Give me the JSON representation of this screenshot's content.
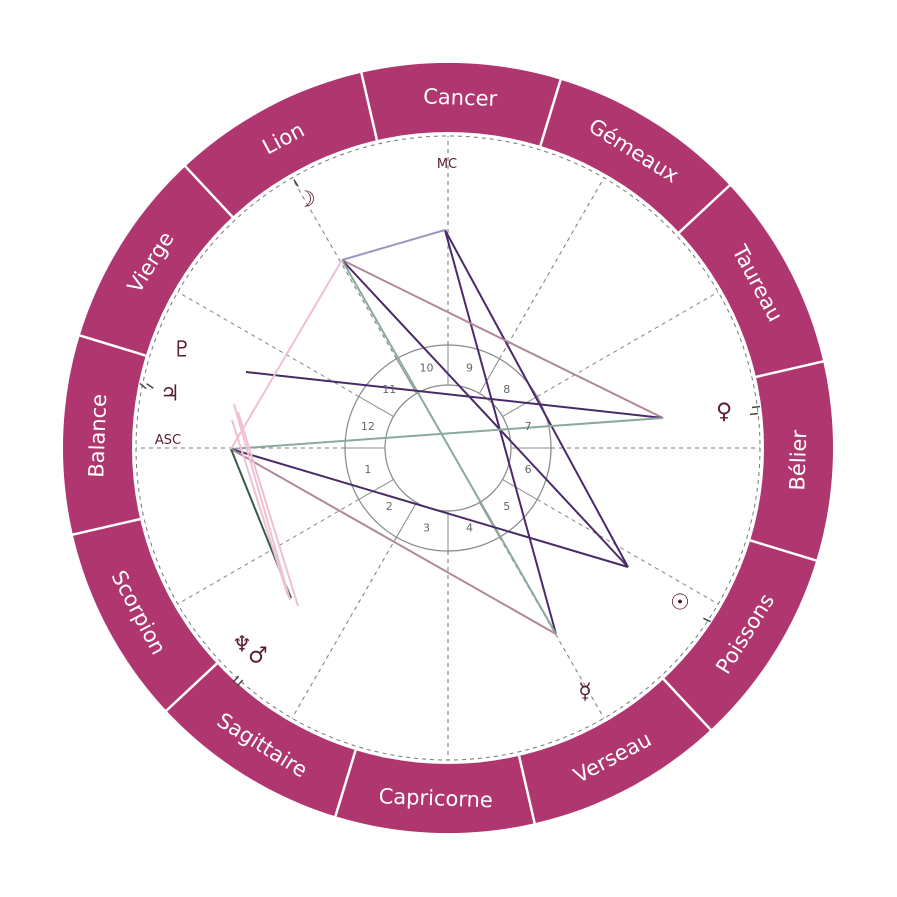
{
  "colors": {
    "ring": "#b0366f",
    "ring_divider": "#ffffff",
    "sign_text": "#ffffff",
    "glyph": "#5a2030",
    "dashed": "#777777",
    "inner_circles": "#888888",
    "aspect_dark_purple": "#4a2a6a",
    "aspect_mauve": "#b08898",
    "aspect_pink": "#eec0d4",
    "aspect_sage": "#8aaa9a",
    "aspect_lavender": "#9a98c0",
    "aspect_dark_green": "#3a5a48"
  },
  "signs": [
    {
      "name": "Cancer"
    },
    {
      "name": "Gémeaux"
    },
    {
      "name": "Taureau"
    },
    {
      "name": "Bélier"
    },
    {
      "name": "Poissons"
    },
    {
      "name": "Verseau"
    },
    {
      "name": "Capricorne"
    },
    {
      "name": "Sagittaire"
    },
    {
      "name": "Scorpion"
    },
    {
      "name": "Balance"
    },
    {
      "name": "Vierge"
    },
    {
      "name": "Lion"
    }
  ],
  "axes": {
    "mc": "MC",
    "asc": "ASC"
  },
  "houses": [
    "1",
    "2",
    "3",
    "4",
    "5",
    "6",
    "7",
    "8",
    "9",
    "10",
    "11",
    "12"
  ],
  "planets": [
    {
      "name": "moon-icon",
      "glyph": "☽"
    },
    {
      "name": "pluto-icon",
      "glyph": "♇"
    },
    {
      "name": "jupiter-uranus-icon",
      "glyph": "♃"
    },
    {
      "name": "venus-icon",
      "glyph": "♀"
    },
    {
      "name": "sun-icon",
      "glyph": "☉"
    },
    {
      "name": "mercury-icon",
      "glyph": "☿"
    },
    {
      "name": "neptune-icon",
      "glyph": "♆"
    },
    {
      "name": "mars-icon",
      "glyph": "♂"
    }
  ]
}
